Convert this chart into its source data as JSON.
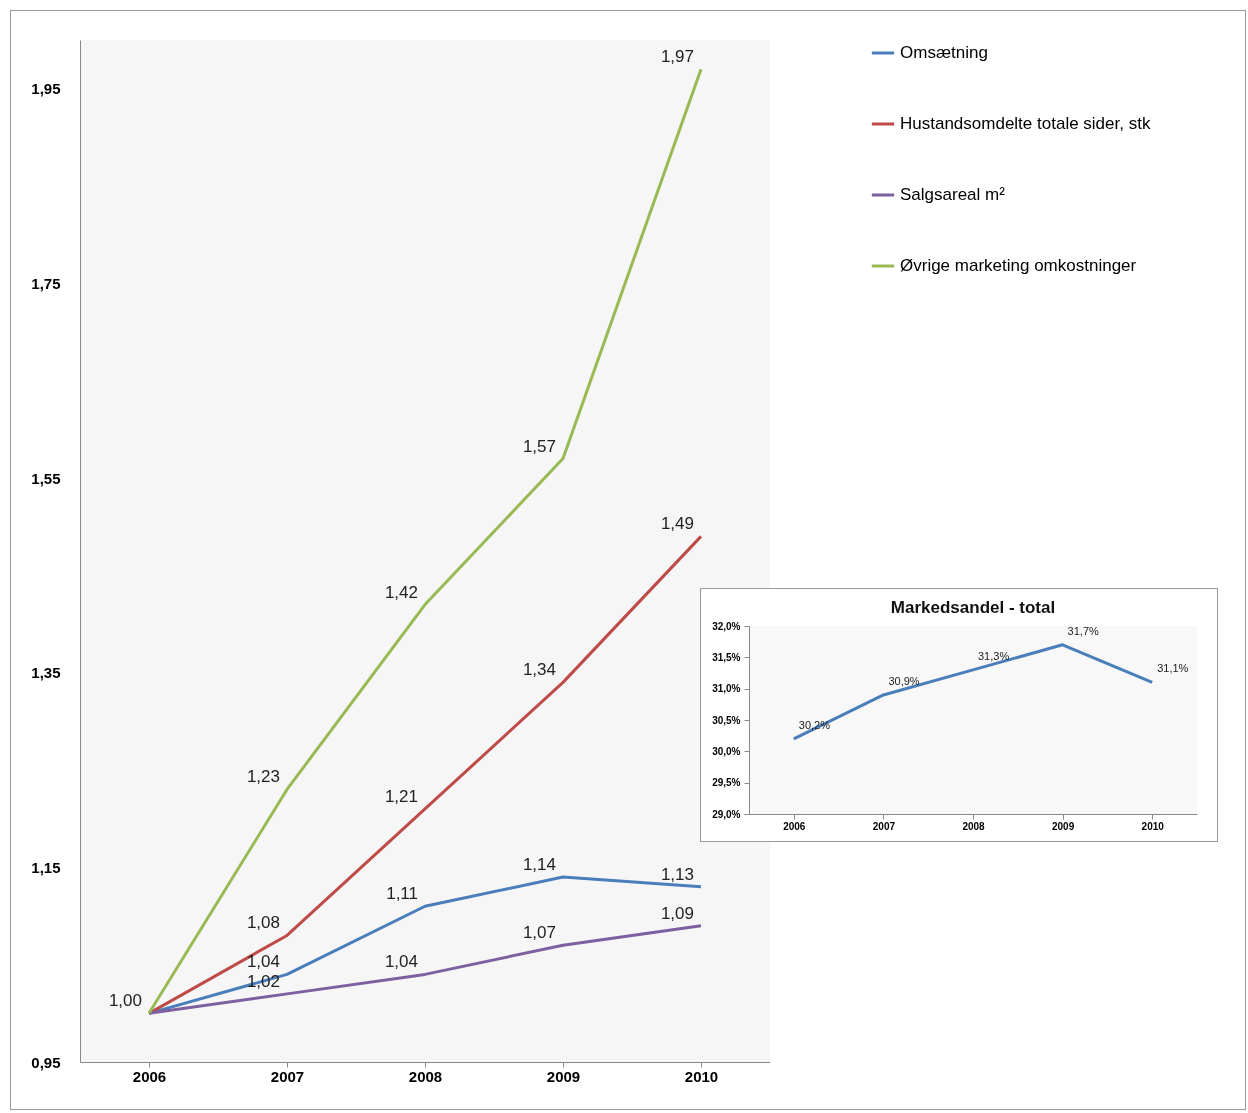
{
  "chart_data": [
    {
      "type": "line",
      "categories": [
        "2006",
        "2007",
        "2008",
        "2009",
        "2010"
      ],
      "series": [
        {
          "name": "Omsætning",
          "color": "#4a7ebb",
          "values": [
            1.0,
            1.04,
            1.11,
            1.14,
            1.13
          ],
          "value_labels": [
            null,
            "1,04",
            "1,11",
            "1,14",
            "1,13"
          ]
        },
        {
          "name": "Hustandsomdelte totale sider, stk",
          "color": "#be4b48",
          "values": [
            1.0,
            1.08,
            1.21,
            1.34,
            1.49
          ],
          "value_labels": [
            null,
            "1,08",
            "1,21",
            "1,34",
            "1,49"
          ]
        },
        {
          "name": "Salgsareal m²",
          "color": "#7d60a0",
          "values": [
            1.0,
            1.02,
            1.04,
            1.07,
            1.09
          ],
          "value_labels": [
            null,
            "1,02",
            "1,04",
            "1,07",
            "1,09"
          ]
        },
        {
          "name": "Øvrige marketing omkostninger",
          "color": "#98b954",
          "values": [
            1.0,
            1.23,
            1.42,
            1.57,
            1.97
          ],
          "value_labels": [
            "1,00",
            "1,23",
            "1,42",
            "1,57",
            "1,97"
          ]
        }
      ],
      "ylim": [
        0.95,
        2.0
      ],
      "yticks": [
        {
          "value": 0.95,
          "label": "0,95"
        },
        {
          "value": 1.15,
          "label": "1,15"
        },
        {
          "value": 1.35,
          "label": "1,35"
        },
        {
          "value": 1.55,
          "label": "1,55"
        },
        {
          "value": 1.75,
          "label": "1,75"
        },
        {
          "value": 1.95,
          "label": "1,95"
        }
      ],
      "legend": "top right"
    },
    {
      "type": "line",
      "title": "Markedsandel - total",
      "categories": [
        "2006",
        "2007",
        "2008",
        "2009",
        "2010"
      ],
      "series": [
        {
          "color": "#4a7ebb",
          "values": [
            30.2,
            30.9,
            31.3,
            31.7,
            31.1
          ],
          "value_labels": [
            "30,2%",
            "30,9%",
            "31,3%",
            "31,7%",
            "31,1%"
          ]
        }
      ],
      "ylim": [
        29,
        32
      ],
      "yticks": [
        {
          "value": 29,
          "label": "29,0%"
        },
        {
          "value": 29.5,
          "label": "29,5%"
        },
        {
          "value": 30,
          "label": "30,0%"
        },
        {
          "value": 30.5,
          "label": "30,5%"
        },
        {
          "value": 31,
          "label": "31,0%"
        },
        {
          "value": 31.5,
          "label": "31,5%"
        },
        {
          "value": 32,
          "label": "32,0%"
        }
      ]
    }
  ]
}
